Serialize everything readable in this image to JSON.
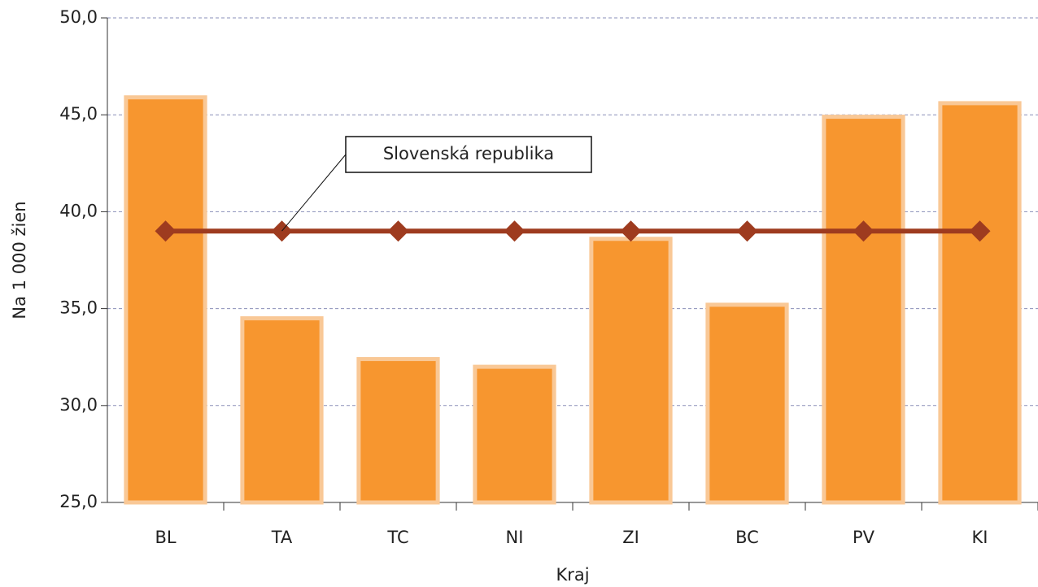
{
  "chart_data": {
    "type": "bar",
    "categories": [
      "BL",
      "TA",
      "TC",
      "NI",
      "ZI",
      "BC",
      "PV",
      "KI"
    ],
    "series": [
      {
        "type": "bar",
        "color": "#f7962f",
        "edge_color": "#f9c896",
        "values": [
          45.9,
          34.5,
          32.4,
          32.0,
          38.6,
          35.2,
          44.9,
          45.6
        ]
      },
      {
        "type": "line",
        "name": "Slovenská republika",
        "color": "#9e3b1f",
        "values": [
          39.0,
          39.0,
          39.0,
          39.0,
          39.0,
          39.0,
          39.0,
          39.0
        ]
      }
    ],
    "ylim": [
      25,
      50
    ],
    "yticks": [
      {
        "value": 25,
        "label": "25,0"
      },
      {
        "value": 30,
        "label": "30,0"
      },
      {
        "value": 35,
        "label": "35,0"
      },
      {
        "value": 40,
        "label": "40,0"
      },
      {
        "value": 45,
        "label": "45,0"
      },
      {
        "value": 50,
        "label": "50,0"
      }
    ],
    "ylabel": "Na 1 000 žien",
    "xlabel": "Kraj",
    "grid": true
  }
}
